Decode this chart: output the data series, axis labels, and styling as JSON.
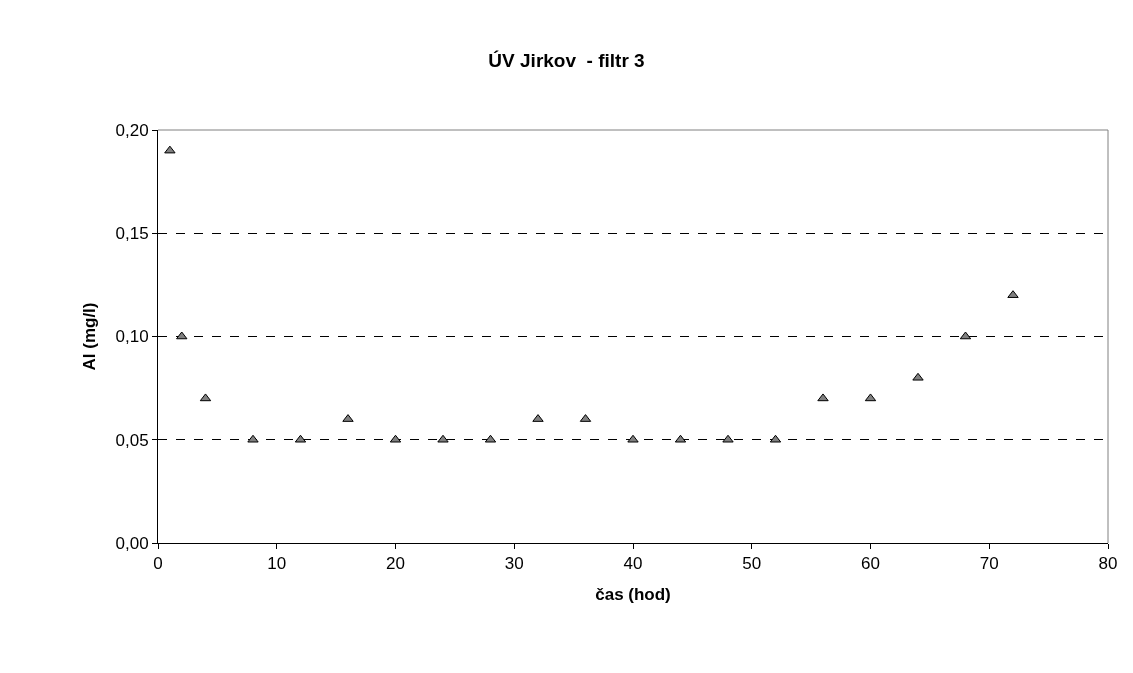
{
  "chart_data": {
    "type": "scatter",
    "title": "ÚV Jirkov  - filtr 3",
    "xlabel": "čas (hod)",
    "ylabel": "Al (mg/l)",
    "x": [
      1,
      2,
      4,
      8,
      12,
      16,
      20,
      24,
      28,
      32,
      36,
      40,
      44,
      48,
      52,
      56,
      60,
      64,
      68,
      72
    ],
    "values": [
      0.19,
      0.1,
      0.07,
      0.05,
      0.05,
      0.06,
      0.05,
      0.05,
      0.05,
      0.06,
      0.06,
      0.05,
      0.05,
      0.05,
      0.05,
      0.07,
      0.07,
      0.08,
      0.1,
      0.12
    ],
    "color": "#808080",
    "xlim": [
      0,
      80
    ],
    "xticks": [
      0,
      10,
      20,
      30,
      40,
      50,
      60,
      70,
      80
    ],
    "ylim": [
      0,
      0.2
    ],
    "yticks": [
      {
        "value": 0,
        "label": "0,00"
      },
      {
        "value": 0.05,
        "label": "0,05"
      },
      {
        "value": 0.1,
        "label": "0,10"
      },
      {
        "value": 0.15,
        "label": "0,15"
      },
      {
        "value": 0.2,
        "label": "0,20"
      }
    ],
    "grid": "y",
    "marker": "triangle",
    "legend": false
  }
}
